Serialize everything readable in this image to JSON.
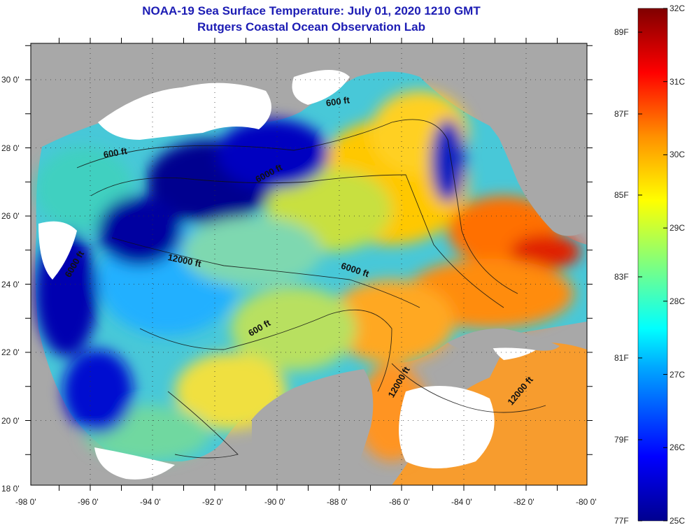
{
  "header": {
    "title": "NOAA-19 Sea Surface Temperature:  July 01, 2020 1210 GMT",
    "subtitle": "Rutgers Coastal Ocean Observation Lab"
  },
  "map": {
    "lon_ticks": [
      "-98 0'",
      "-96 0'",
      "-94 0'",
      "-92 0'",
      "-90 0'",
      "-88 0'",
      "-86 0'",
      "-84 0'",
      "-82 0'",
      "-80 0'"
    ],
    "lat_ticks": [
      "30 0'",
      "28 0'",
      "26 0'",
      "24 0'",
      "22 0'",
      "20 0'",
      "18 0'"
    ],
    "contour_labels": [
      "600 ft",
      "600 ft",
      "6000 ft",
      "12000 ft",
      "6000 ft",
      "6000 ft",
      "600 ft",
      "12000 ft",
      "12000 ft"
    ],
    "colors": {
      "land": "#a8a8a8",
      "cloud": "#ffffff",
      "cold": "#00008f",
      "warm": "#ff3300"
    }
  },
  "colorbar": {
    "c_labels": [
      "32C",
      "31C",
      "30C",
      "29C",
      "28C",
      "27C",
      "26C",
      "25C"
    ],
    "f_labels": [
      "89F",
      "87F",
      "85F",
      "83F",
      "81F",
      "79F",
      "77F"
    ]
  }
}
